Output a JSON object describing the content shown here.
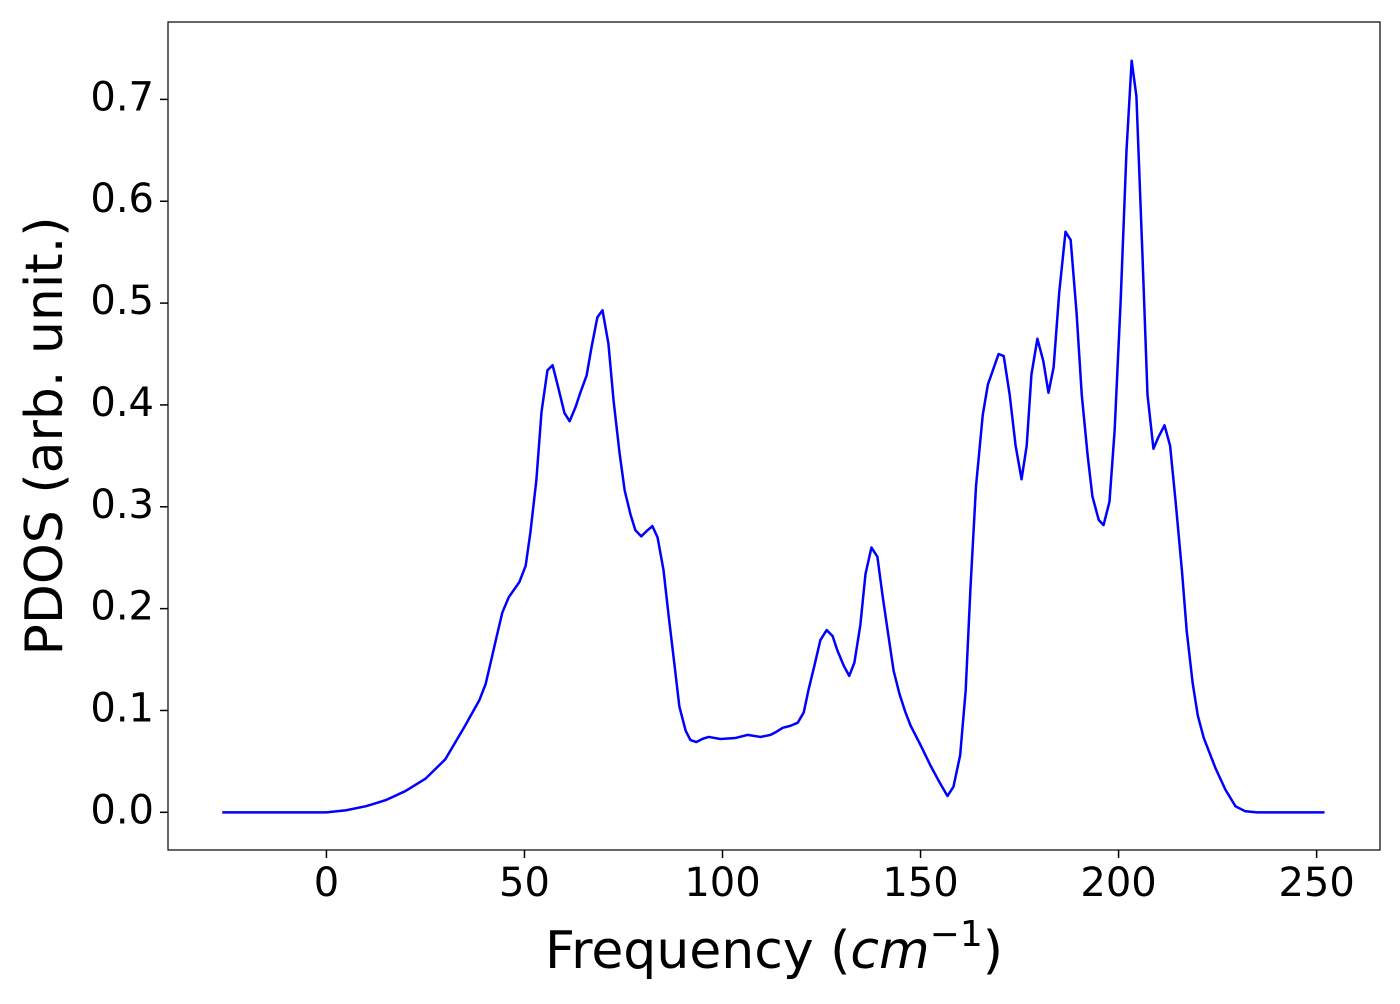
{
  "chart_data": {
    "type": "line",
    "x_label": [
      "Frequency (",
      "cm",
      "−1",
      ")"
    ],
    "y_label": "PDOS (arb. unit.)",
    "xlim": [
      -40,
      266
    ],
    "ylim": [
      -0.037,
      0.776
    ],
    "xticks": [
      0,
      50,
      100,
      150,
      200,
      250
    ],
    "yticks": [
      {
        "value": 0,
        "label": "0.0"
      },
      0.1,
      0.2,
      0.3,
      0.4,
      0.5,
      0.6,
      0.7
    ],
    "color": "#0000ff",
    "x": [
      -26.3,
      -10,
      0,
      5,
      10,
      15,
      20,
      25,
      30,
      35,
      38.6,
      40.2,
      41.4,
      43,
      44.4,
      46,
      48.7,
      50.3,
      51.5,
      53,
      54.3,
      55.8,
      57.1,
      58.6,
      60.1,
      61.4,
      62.9,
      64.1,
      65.7,
      66.9,
      68.4,
      69.7,
      71.2,
      72.5,
      74,
      75.3,
      76.8,
      78,
      79.5,
      80.8,
      82.3,
      83.6,
      85.1,
      86.4,
      87.9,
      89.1,
      90.7,
      91.9,
      93.4,
      94.9,
      96.5,
      99.5,
      103.3,
      106.3,
      109.6,
      112.1,
      113.6,
      115.2,
      117.2,
      119,
      120.5,
      121.7,
      123.2,
      124.7,
      126.3,
      127.8,
      129,
      130.6,
      132,
      133.3,
      134.8,
      136.1,
      137.6,
      139.1,
      140.4,
      141.9,
      143.2,
      144.7,
      146.2,
      147.5,
      150,
      152.5,
      155,
      156.8,
      158.3,
      160,
      161.4,
      162.6,
      164,
      165.7,
      167,
      169.7,
      171,
      172.5,
      174,
      175.5,
      176.8,
      178,
      179.5,
      181,
      182.3,
      183.6,
      185,
      186.6,
      187.9,
      189.4,
      190.7,
      192.2,
      193.4,
      195,
      196.2,
      197.7,
      199,
      200.5,
      202,
      203.3,
      204.5,
      206,
      207.3,
      208.8,
      210,
      211.6,
      213,
      214.4,
      216,
      217.2,
      218.7,
      220,
      221.5,
      224.5,
      227,
      229.5,
      232,
      235,
      252
    ],
    "values": [
      0,
      0,
      0,
      0.002,
      0.006,
      0.012,
      0.021,
      0.033,
      0.052,
      0.085,
      0.11,
      0.126,
      0.146,
      0.173,
      0.196,
      0.211,
      0.226,
      0.242,
      0.275,
      0.326,
      0.393,
      0.434,
      0.439,
      0.416,
      0.392,
      0.384,
      0.398,
      0.412,
      0.429,
      0.456,
      0.486,
      0.493,
      0.46,
      0.404,
      0.353,
      0.316,
      0.292,
      0.277,
      0.271,
      0.276,
      0.281,
      0.27,
      0.238,
      0.193,
      0.144,
      0.104,
      0.08,
      0.071,
      0.069,
      0.072,
      0.074,
      0.072,
      0.073,
      0.076,
      0.074,
      0.076,
      0.079,
      0.083,
      0.085,
      0.088,
      0.098,
      0.12,
      0.144,
      0.169,
      0.179,
      0.173,
      0.159,
      0.144,
      0.134,
      0.147,
      0.184,
      0.234,
      0.26,
      0.251,
      0.213,
      0.173,
      0.139,
      0.116,
      0.098,
      0.085,
      0.066,
      0.046,
      0.028,
      0.016,
      0.025,
      0.056,
      0.12,
      0.22,
      0.32,
      0.39,
      0.42,
      0.45,
      0.448,
      0.41,
      0.36,
      0.327,
      0.36,
      0.43,
      0.465,
      0.443,
      0.412,
      0.437,
      0.51,
      0.57,
      0.562,
      0.49,
      0.41,
      0.35,
      0.31,
      0.287,
      0.282,
      0.305,
      0.375,
      0.5,
      0.65,
      0.738,
      0.703,
      0.55,
      0.41,
      0.357,
      0.368,
      0.38,
      0.36,
      0.305,
      0.237,
      0.178,
      0.127,
      0.095,
      0.073,
      0.043,
      0.022,
      0.006,
      0.001,
      0,
      0
    ]
  }
}
